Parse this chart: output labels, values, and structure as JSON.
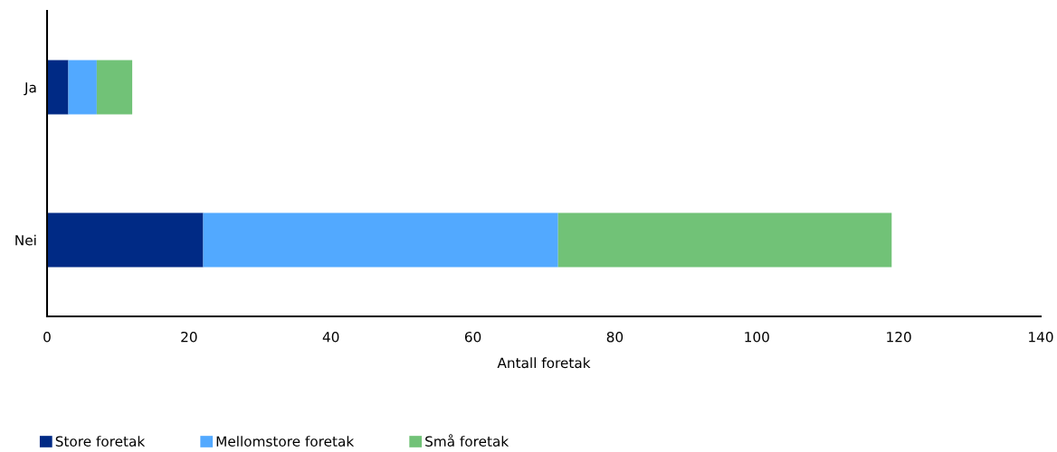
{
  "chart_data": {
    "type": "bar",
    "orientation": "horizontal",
    "stacked": true,
    "categories": [
      "Ja",
      "Nei"
    ],
    "series": [
      {
        "name": "Store foretak",
        "color": "#002a85",
        "values": [
          3,
          22
        ]
      },
      {
        "name": "Mellomstore foretak",
        "color": "#52a9ff",
        "values": [
          4,
          50
        ]
      },
      {
        "name": "Små foretak",
        "color": "#71c277",
        "values": [
          5,
          47
        ]
      }
    ],
    "xlabel": "Antall foretak",
    "xlim": [
      0,
      140
    ],
    "xticks": [
      0,
      20,
      40,
      60,
      80,
      100,
      120,
      140
    ],
    "grid": false,
    "legend": "bottom left"
  }
}
